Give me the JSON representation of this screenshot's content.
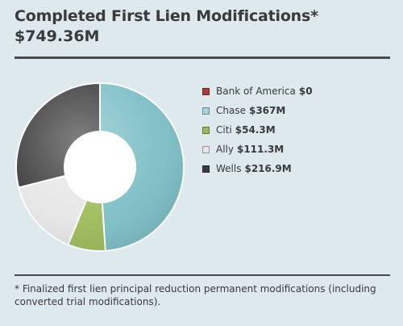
{
  "header": {
    "title": "Completed First Lien Modifications*",
    "total": "$749.36M"
  },
  "chart_data": {
    "type": "pie",
    "style": "donut",
    "title": "Completed First Lien Modifications*",
    "total": "$749.36M",
    "legend_position": "right",
    "slices": [
      {
        "name": "Bank of America",
        "label": "$0",
        "value": 0,
        "color": "#a83a3a"
      },
      {
        "name": "Chase",
        "label": "$367M",
        "value": 367,
        "color": "#7dbfc6"
      },
      {
        "name": "Citi",
        "label": "$54.3M",
        "value": 54.3,
        "color": "#9dbb5a"
      },
      {
        "name": "Ally",
        "label": "$111.3M",
        "value": 111.3,
        "color": "#e6e6e6"
      },
      {
        "name": "Wells",
        "label": "$216.9M",
        "value": 216.9,
        "color": "#3c3c3c"
      }
    ]
  },
  "footnote": "* Finalized first lien principal reduction permanent modifications (including converted trial modifications)."
}
